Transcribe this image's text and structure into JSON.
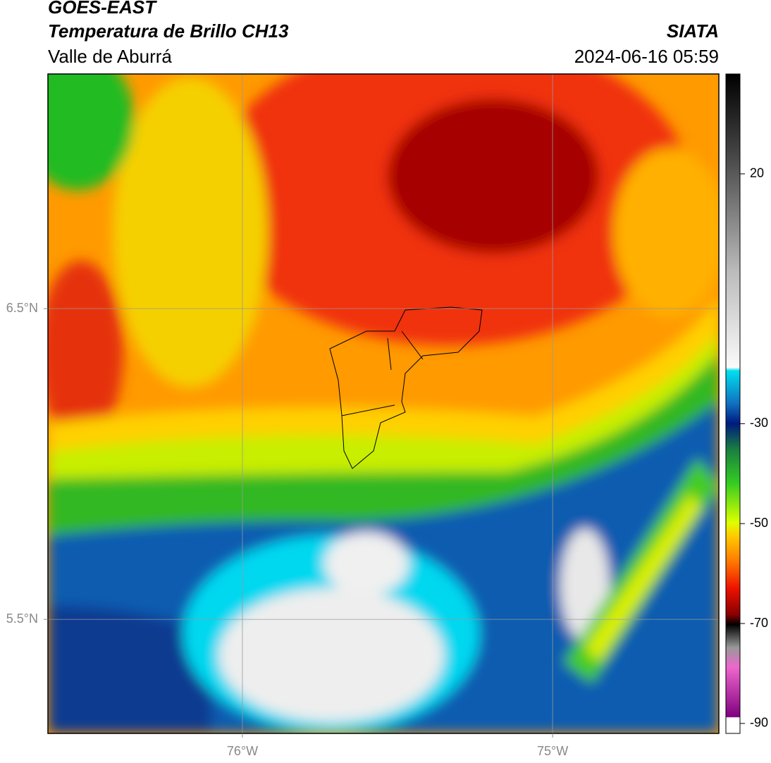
{
  "header": {
    "title": "GOES-EAST",
    "subtitle": "Temperatura de Brillo CH13",
    "region": "Valle de Aburrá",
    "brand": "SIATA",
    "datetime": "2024-06-16 05:59"
  },
  "map": {
    "lon_lim": [
      -76.627,
      -74.464
    ],
    "lat_lim": [
      5.133,
      7.255
    ],
    "lon_ticks": [
      {
        "value": -76,
        "label": "76°W"
      },
      {
        "value": -75,
        "label": "75°W"
      }
    ],
    "lat_ticks": [
      {
        "value": 6.5,
        "label": "6.5°N"
      },
      {
        "value": 5.5,
        "label": "5.5°N"
      }
    ]
  },
  "colorbar": {
    "lim": [
      -92,
      40
    ],
    "ticks": [
      20,
      -30,
      -50,
      -70,
      -90
    ]
  }
}
